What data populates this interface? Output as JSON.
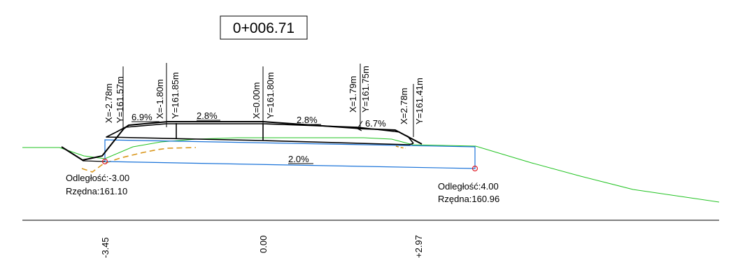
{
  "station": "0+006.71",
  "vertical_labels": [
    {
      "x": "X=-2.78m",
      "y": "Y=161.57m"
    },
    {
      "x": "X=-1.80m",
      "y": "Y=161.85m"
    },
    {
      "x": "X=0.00m",
      "y": "Y=161.80m"
    },
    {
      "x": "X=1.79m",
      "y": "Y=161.75m"
    },
    {
      "x": "X=2.78m",
      "y": "Y=161.41m"
    }
  ],
  "slopes": [
    "6.9%",
    "2.8%",
    "2.8%",
    "6.7%",
    "2.0%"
  ],
  "left_point": {
    "distance": "Odległość:-3.00",
    "elevation": "Rzędna:161.10"
  },
  "right_point": {
    "distance": "Odległość:4.00",
    "elevation": "Rzędna:160.96"
  },
  "axis_labels": [
    "-3.45",
    "0.00",
    "+2.97"
  ],
  "colors": {
    "terrain": "#22c322",
    "design_box": "#1a73d9",
    "subgrade": "#d9961a",
    "marker": "#e0202a",
    "road": "#000000"
  }
}
